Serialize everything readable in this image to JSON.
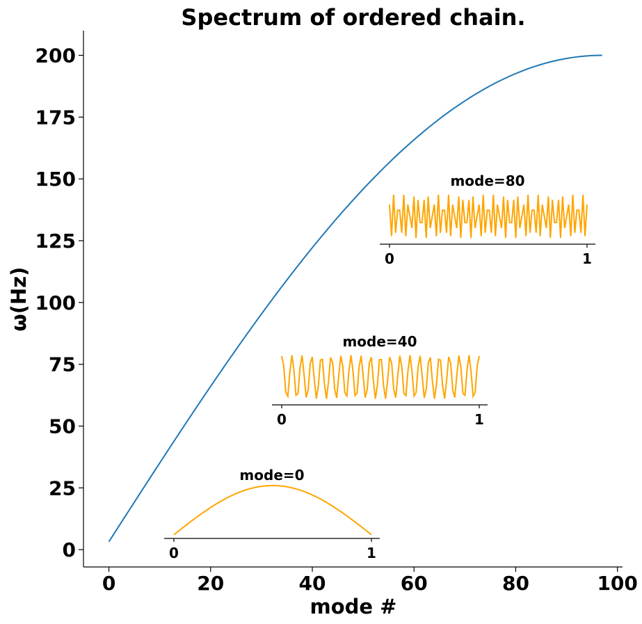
{
  "chart_data": {
    "type": "line",
    "title": "Spectrum of ordered chain.",
    "xlabel": "mode #",
    "ylabel": "ω(Hz)",
    "xlim": [
      -5,
      101
    ],
    "ylim": [
      -7,
      210
    ],
    "xticks": [
      0,
      20,
      40,
      60,
      80,
      100
    ],
    "yticks": [
      0,
      25,
      50,
      75,
      100,
      125,
      150,
      175,
      200
    ],
    "grid": false,
    "series": [
      {
        "color": "#1f77b4",
        "function": "200*sin(pi*(n+1)/(2*98))",
        "n_range": [
          0,
          97
        ],
        "sample_points": [
          {
            "x": 0,
            "y": 3.2
          },
          {
            "x": 20,
            "y": 66.4
          },
          {
            "x": 40,
            "y": 122.0
          },
          {
            "x": 60,
            "y": 165.0
          },
          {
            "x": 80,
            "y": 192.0
          },
          {
            "x": 97,
            "y": 200.0
          }
        ]
      }
    ],
    "insets": [
      {
        "title": "mode=0",
        "mode": 0,
        "color": "#FFA500",
        "xticks": [
          "0",
          "1"
        ]
      },
      {
        "title": "mode=40",
        "mode": 40,
        "color": "#FFA500",
        "xticks": [
          "0",
          "1"
        ]
      },
      {
        "title": "mode=80",
        "mode": 80,
        "color": "#FFA500",
        "xticks": [
          "0",
          "1"
        ]
      }
    ]
  }
}
